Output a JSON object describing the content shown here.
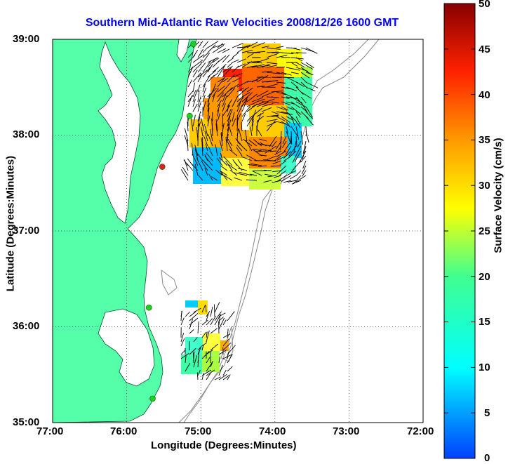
{
  "title": "Southern Mid-Atlantic Raw Velocities 2008/12/26 1600 GMT",
  "x_axis": {
    "label": "Longitude (Degrees:Minutes)",
    "ticks": [
      "77:00",
      "76:00",
      "75:00",
      "74:00",
      "73:00",
      "72:00"
    ]
  },
  "y_axis": {
    "label": "Latitude (Degrees:Minutes)",
    "ticks": [
      "39:00",
      "38:00",
      "37:00",
      "36:00",
      "35:00"
    ]
  },
  "colorbar": {
    "label": "Surface Velocity (cm/s)",
    "min": 0,
    "max": 50,
    "ticks": [
      "50",
      "45",
      "40",
      "35",
      "30",
      "25",
      "20",
      "15",
      "10",
      "5",
      "0"
    ]
  },
  "map": {
    "lon_range": [
      -77,
      -72
    ],
    "lat_range": [
      35,
      39
    ],
    "land_color": "#55ffaa",
    "grid": "dotted",
    "stations": [
      {
        "lon": -75.1,
        "lat": 38.95,
        "status": "active"
      },
      {
        "lon": -75.15,
        "lat": 38.2,
        "status": "active"
      },
      {
        "lon": -75.52,
        "lat": 37.67,
        "status": "inactive"
      },
      {
        "lon": -75.7,
        "lat": 36.2,
        "status": "active"
      },
      {
        "lon": -75.65,
        "lat": 35.25,
        "status": "active"
      }
    ]
  },
  "colors": {
    "title": "#0000ff",
    "active_station": "#22cc22",
    "inactive_station": "#dd2222",
    "contour": "#888888"
  }
}
